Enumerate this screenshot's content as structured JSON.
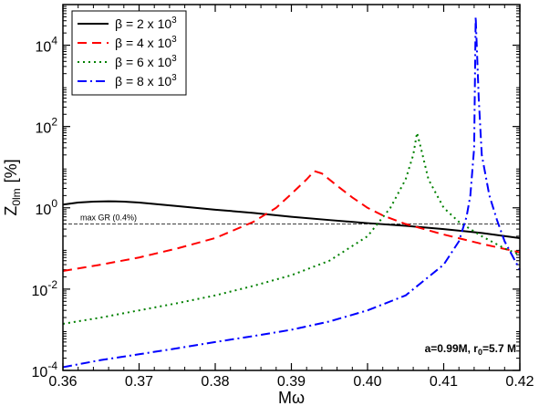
{
  "chart_data": {
    "type": "line",
    "xlabel": "Mω",
    "ylabel": "Z",
    "ylabel_sub": "0lm",
    "ylabel_unit": "[%]",
    "xlim": [
      0.36,
      0.42
    ],
    "ylim": [
      0.0001,
      100000
    ],
    "yscale": "log",
    "xticks": [
      0.36,
      0.37,
      0.38,
      0.39,
      0.4,
      0.41,
      0.42
    ],
    "xtick_labels": [
      "0.36",
      "0.37",
      "0.38",
      "0.39",
      "0.40",
      "0.41",
      "0.42"
    ],
    "yticks": [
      {
        "value": 0.0001,
        "base": "10",
        "exp": "-4"
      },
      {
        "value": 0.01,
        "base": "10",
        "exp": "-2"
      },
      {
        "value": 1,
        "base": "10",
        "exp": "0"
      },
      {
        "value": 100,
        "base": "10",
        "exp": "2"
      },
      {
        "value": 10000,
        "base": "10",
        "exp": "4"
      }
    ],
    "legend_position": "top-left",
    "series": [
      {
        "name": "β = 2 x 10",
        "name_exp": "3",
        "color": "#000000",
        "dash": "",
        "x": [
          0.36,
          0.362,
          0.364,
          0.366,
          0.368,
          0.37,
          0.375,
          0.38,
          0.385,
          0.39,
          0.395,
          0.4,
          0.405,
          0.41,
          0.415,
          0.42
        ],
        "y": [
          1.2,
          1.35,
          1.42,
          1.45,
          1.42,
          1.35,
          1.1,
          0.9,
          0.75,
          0.6,
          0.5,
          0.42,
          0.36,
          0.3,
          0.24,
          0.18
        ]
      },
      {
        "name": "β = 4 x 10",
        "name_exp": "3",
        "color": "#ff0000",
        "dash": "10,6",
        "x": [
          0.36,
          0.365,
          0.37,
          0.375,
          0.38,
          0.385,
          0.388,
          0.39,
          0.392,
          0.393,
          0.394,
          0.396,
          0.398,
          0.4,
          0.402,
          0.405,
          0.41,
          0.415,
          0.42
        ],
        "y": [
          0.028,
          0.04,
          0.06,
          0.1,
          0.18,
          0.45,
          1.0,
          2.2,
          5.0,
          8.0,
          7.0,
          3.5,
          1.8,
          1.0,
          0.65,
          0.4,
          0.22,
          0.13,
          0.08
        ]
      },
      {
        "name": "β = 6 x 10",
        "name_exp": "3",
        "color": "#008000",
        "dash": "2,4",
        "x": [
          0.36,
          0.365,
          0.37,
          0.375,
          0.38,
          0.385,
          0.39,
          0.395,
          0.4,
          0.403,
          0.405,
          0.406,
          0.4065,
          0.407,
          0.408,
          0.41,
          0.412,
          0.415,
          0.418,
          0.42
        ],
        "y": [
          0.0014,
          0.002,
          0.003,
          0.0045,
          0.007,
          0.012,
          0.022,
          0.05,
          0.2,
          1.0,
          5.0,
          20,
          70,
          30,
          5.0,
          1.0,
          0.45,
          0.2,
          0.1,
          0.07
        ]
      },
      {
        "name": "β = 8 x 10",
        "name_exp": "3",
        "color": "#0000ff",
        "dash": "10,4,2,4",
        "x": [
          0.36,
          0.365,
          0.37,
          0.375,
          0.38,
          0.385,
          0.39,
          0.395,
          0.4,
          0.405,
          0.41,
          0.412,
          0.413,
          0.4135,
          0.414,
          0.4142,
          0.4146,
          0.415,
          0.416,
          0.417,
          0.418,
          0.42
        ],
        "y": [
          0.00012,
          0.00018,
          0.00025,
          0.00035,
          0.0005,
          0.0007,
          0.001,
          0.0016,
          0.003,
          0.007,
          0.04,
          0.15,
          0.6,
          2.0,
          30,
          50000,
          500,
          20,
          2.0,
          0.5,
          0.15,
          0.03
        ]
      }
    ],
    "reference_line": {
      "value": 0.4,
      "label": "max GR (0.4%)"
    },
    "annotation": {
      "prefix": "a=0.99M, r",
      "sub": "0",
      "suffix": "=5.7 M"
    }
  }
}
